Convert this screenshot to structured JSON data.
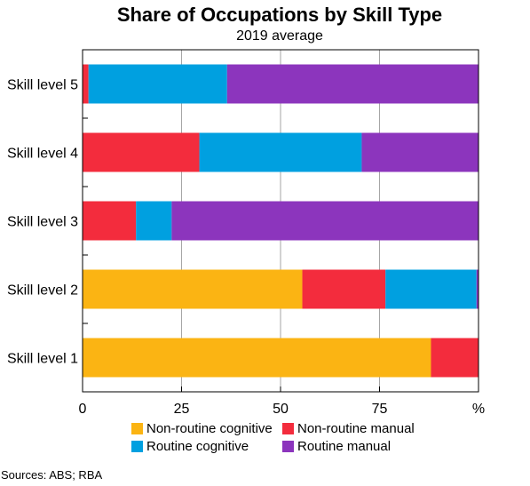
{
  "chart_data": {
    "type": "bar",
    "orientation": "horizontal",
    "stacked": true,
    "title": "Share of Occupations by Skill Type",
    "subtitle": "2019 average",
    "categories": [
      "Skill level 5",
      "Skill level 4",
      "Skill level 3",
      "Skill level 2",
      "Skill level 1"
    ],
    "series": [
      {
        "name": "Non-routine cognitive",
        "color": "#fbb413",
        "values": [
          0,
          0,
          0,
          55.5,
          88
        ]
      },
      {
        "name": "Non-routine manual",
        "color": "#f32c3d",
        "values": [
          1.5,
          29.5,
          13.5,
          21,
          12
        ]
      },
      {
        "name": "Routine cognitive",
        "color": "#00a0e0",
        "values": [
          35,
          41,
          9,
          23,
          0
        ]
      },
      {
        "name": "Routine manual",
        "color": "#8c35bd",
        "values": [
          63.5,
          29.5,
          77.5,
          0.5,
          0
        ]
      }
    ],
    "x_ticks": [
      "0",
      "25",
      "50",
      "75",
      "%"
    ],
    "xlim": [
      0,
      100
    ],
    "grid": true,
    "legend_position": "bottom"
  },
  "sources": "Sources:   ABS; RBA"
}
